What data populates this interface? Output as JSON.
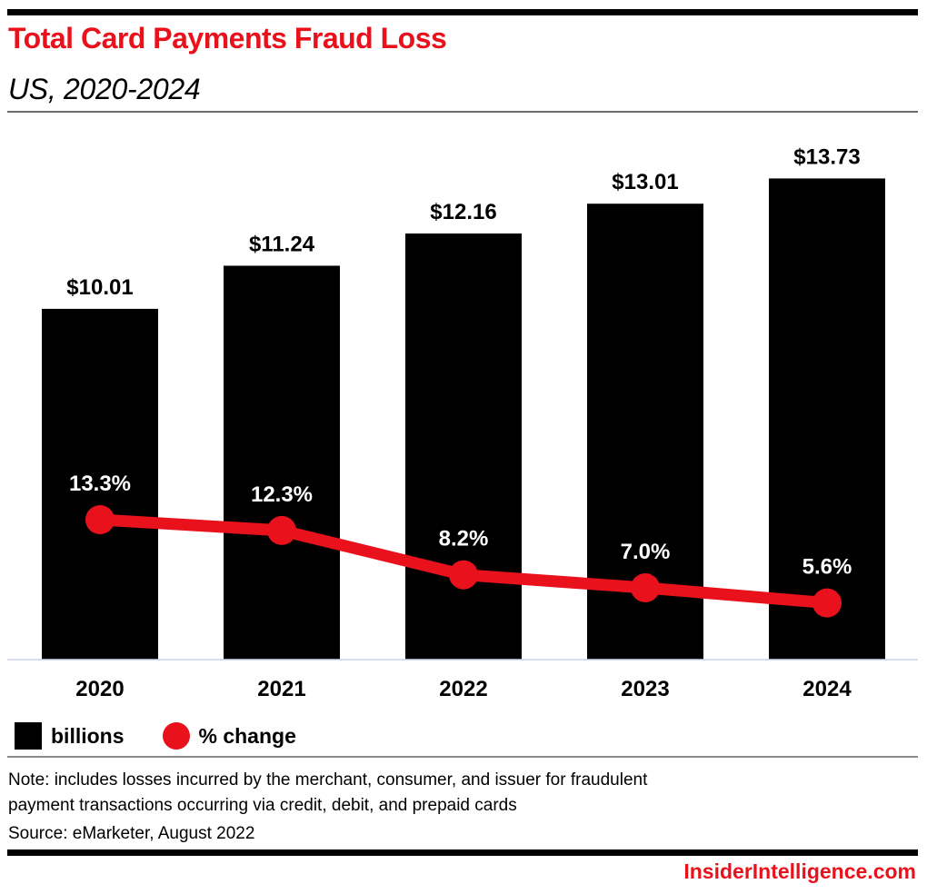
{
  "header": {
    "title": "Total Card Payments Fraud Loss",
    "subtitle": "US, 2020-2024"
  },
  "chart_data": {
    "type": "bar",
    "title": "Total Card Payments Fraud Loss",
    "subtitle": "US, 2020-2024",
    "xlabel": "",
    "ylabel": "",
    "categories": [
      "2020",
      "2021",
      "2022",
      "2023",
      "2024"
    ],
    "series": [
      {
        "name": "billions",
        "type": "bar",
        "values": [
          10.01,
          11.24,
          12.16,
          13.01,
          13.73
        ],
        "labels": [
          "$10.01",
          "$11.24",
          "$12.16",
          "$13.01",
          "$13.73"
        ],
        "color": "#000000"
      },
      {
        "name": "% change",
        "type": "line",
        "values": [
          13.3,
          12.3,
          8.2,
          7.0,
          5.6
        ],
        "labels": [
          "13.3%",
          "12.3%",
          "8.2%",
          "7.0%",
          "5.6%"
        ],
        "color": "#e8111c"
      }
    ],
    "ylim": [
      0,
      14
    ],
    "grid": false,
    "legend": "bottom-left"
  },
  "legend": {
    "items": [
      {
        "label": "billions",
        "color": "#000000"
      },
      {
        "label": "% change",
        "color": "#e8111c"
      }
    ]
  },
  "footer": {
    "note_line1": "Note: includes losses incurred by the merchant, consumer, and issuer for fraudulent",
    "note_line2": "payment transactions occurring via credit, debit, and prepaid cards",
    "source": "Source: eMarketer, August 2022",
    "brand": "InsiderIntelligence.com"
  },
  "colors": {
    "accent": "#e8111c",
    "bar": "#000000",
    "axis": "#c8d4ea"
  }
}
